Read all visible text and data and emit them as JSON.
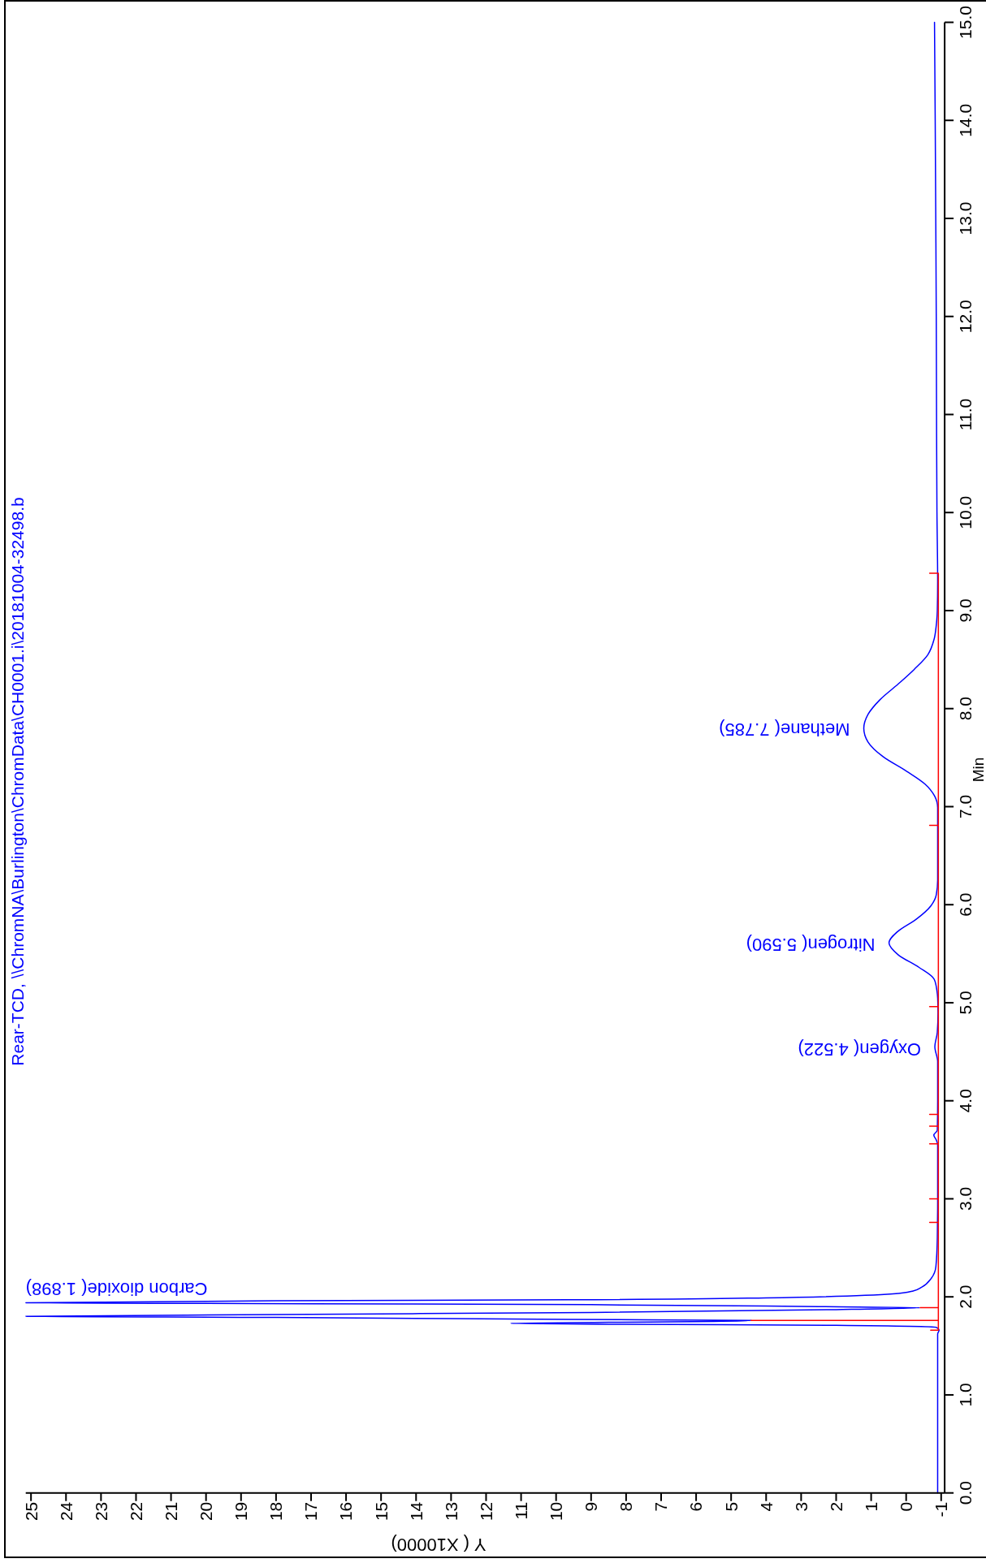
{
  "chart_data": {
    "type": "line",
    "title": "Rear-TCD, \\\\ChromNA\\Burlington\\ChromData\\CH0001.i\\20181004-32498.b",
    "xlabel": "Y ( X10000)",
    "ylabel": "Min",
    "xlim": [
      25.15,
      -1.1
    ],
    "ylim": [
      0,
      15
    ],
    "xticks": [
      25,
      24,
      23,
      22,
      21,
      20,
      19,
      18,
      17,
      16,
      15,
      14,
      13,
      12,
      11,
      10,
      9,
      8,
      7,
      6,
      5,
      4,
      3,
      2,
      1,
      0,
      -1
    ],
    "yticks": [
      {
        "value": 0,
        "label": "0.0"
      },
      {
        "value": 1,
        "label": "1.0"
      },
      {
        "value": 2,
        "label": "2.0"
      },
      {
        "value": 3,
        "label": "3.0"
      },
      {
        "value": 4,
        "label": "4.0"
      },
      {
        "value": 5,
        "label": "5.0"
      },
      {
        "value": 6,
        "label": "6.0"
      },
      {
        "value": 7,
        "label": "7.0"
      },
      {
        "value": 8,
        "label": "8.0"
      },
      {
        "value": 9,
        "label": "9.0"
      },
      {
        "value": 10,
        "label": "10.0"
      },
      {
        "value": 11,
        "label": "11.0"
      },
      {
        "value": 12,
        "label": "12.0"
      },
      {
        "value": 13,
        "label": "13.0"
      },
      {
        "value": 14,
        "label": "14.0"
      },
      {
        "value": 15,
        "label": "15.0"
      }
    ],
    "series": [
      {
        "color": "#0000ff",
        "x": [
          -0.9,
          -0.9,
          -0.9,
          -0.9,
          -0.9,
          -0.94,
          -0.85,
          2,
          8,
          11.3,
          8.5,
          5.5,
          4.43,
          9.65,
          18,
          25.15,
          18,
          9,
          2,
          -0.4,
          2.5,
          9,
          17,
          25.15,
          18,
          9.65,
          4,
          0.37,
          -0.2,
          -0.45,
          -0.72,
          -0.85,
          -0.89,
          -0.9,
          -0.9,
          -0.86,
          -0.79,
          -0.89,
          -0.9,
          -0.9,
          -0.82,
          -0.89,
          -0.91,
          -0.9,
          -0.88,
          -0.8,
          -0.37,
          0.23,
          0.49,
          0.23,
          -0.28,
          -0.71,
          -0.86,
          -0.9,
          -0.9,
          -0.9,
          -0.81,
          -0.54,
          -0.02,
          0.66,
          1.09,
          1.21,
          1.09,
          0.75,
          0.23,
          -0.23,
          -0.62,
          -0.8,
          -0.86,
          -0.89,
          -0.9,
          -0.88,
          -0.86,
          -0.83,
          -0.81
        ],
        "values": [
          0,
          0.5,
          1.0,
          1.5,
          1.62,
          1.66,
          1.69,
          1.71,
          1.72,
          1.73,
          1.74,
          1.75,
          1.76,
          1.77,
          1.79,
          1.8,
          1.82,
          1.84,
          1.87,
          1.89,
          1.9,
          1.92,
          1.93,
          1.94,
          1.96,
          1.97,
          1.99,
          2.03,
          2.06,
          2.1,
          2.19,
          2.31,
          2.6,
          3.0,
          3.55,
          3.6,
          3.65,
          3.7,
          4.0,
          4.4,
          4.55,
          4.7,
          4.9,
          5.05,
          5.12,
          5.24,
          5.36,
          5.49,
          5.61,
          5.73,
          5.85,
          5.99,
          6.1,
          6.25,
          6.6,
          6.99,
          7.11,
          7.23,
          7.36,
          7.51,
          7.66,
          7.8,
          7.94,
          8.09,
          8.25,
          8.4,
          8.55,
          8.71,
          8.85,
          9.0,
          9.3,
          10,
          12,
          14,
          15
        ]
      },
      {
        "color": "#ff0000",
        "x": [
          -0.7,
          -0.92,
          -0.92,
          4.43,
          -0.92,
          -0.92,
          -0.4,
          -0.92,
          -0.92,
          -0.67,
          -0.92,
          -0.92,
          -0.67,
          -0.92,
          -0.92,
          -0.67,
          -0.92,
          -0.92,
          -0.67,
          -0.92,
          -0.92,
          -0.67,
          -0.92,
          -0.92,
          -0.67,
          -0.92,
          -0.92,
          -0.67,
          -0.92,
          -0.92,
          -0.67
        ],
        "values": [
          1.66,
          1.66,
          1.76,
          1.76,
          1.76,
          1.89,
          1.89,
          1.89,
          2.76,
          2.76,
          2.76,
          3.0,
          3.0,
          3.0,
          3.56,
          3.56,
          3.56,
          3.74,
          3.74,
          3.74,
          3.86,
          3.86,
          3.86,
          4.96,
          4.96,
          4.96,
          6.81,
          6.81,
          6.81,
          9.38,
          9.38
        ]
      }
    ],
    "annotations": [
      {
        "text": "Carbon dioxide( 1.898)",
        "x": 25.15,
        "y": 1.898
      },
      {
        "text": "Oxygen( 4.522)",
        "x": -0.82,
        "y": 4.522
      },
      {
        "text": "Nitrogen( 5.590)",
        "x": 0.49,
        "y": 5.59
      },
      {
        "text": "Methane( 7.785)",
        "x": 1.21,
        "y": 7.785
      }
    ]
  }
}
